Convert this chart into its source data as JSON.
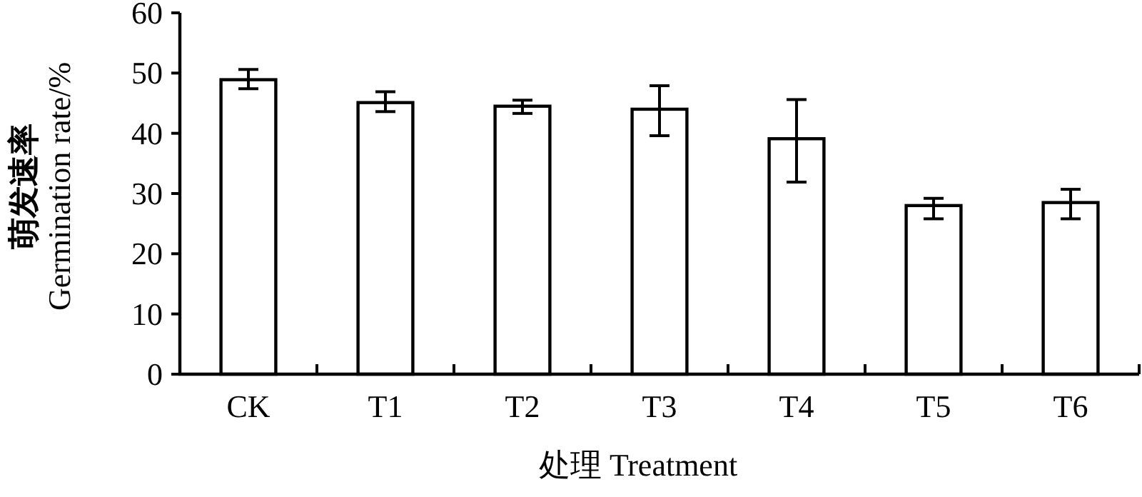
{
  "chart_data": {
    "type": "bar",
    "xlabel": "处理 Treatment",
    "ylabel": "萌发速率\nGermination rate/%",
    "categories": [
      "CK",
      "T1",
      "T2",
      "T3",
      "T4",
      "T5",
      "T6"
    ],
    "values": [
      48.9,
      45.1,
      44.5,
      44.0,
      39.1,
      28.0,
      28.5
    ],
    "errors": [
      [
        47.4,
        50.6
      ],
      [
        43.6,
        46.9
      ],
      [
        43.3,
        45.5
      ],
      [
        39.6,
        47.9
      ],
      [
        31.9,
        45.6
      ],
      [
        25.8,
        29.2
      ],
      [
        25.8,
        30.7
      ]
    ],
    "color": "#ffffff",
    "ylim": [
      0,
      60
    ],
    "yticks": [
      0,
      10,
      20,
      30,
      40,
      50,
      60
    ],
    "grid": false
  }
}
